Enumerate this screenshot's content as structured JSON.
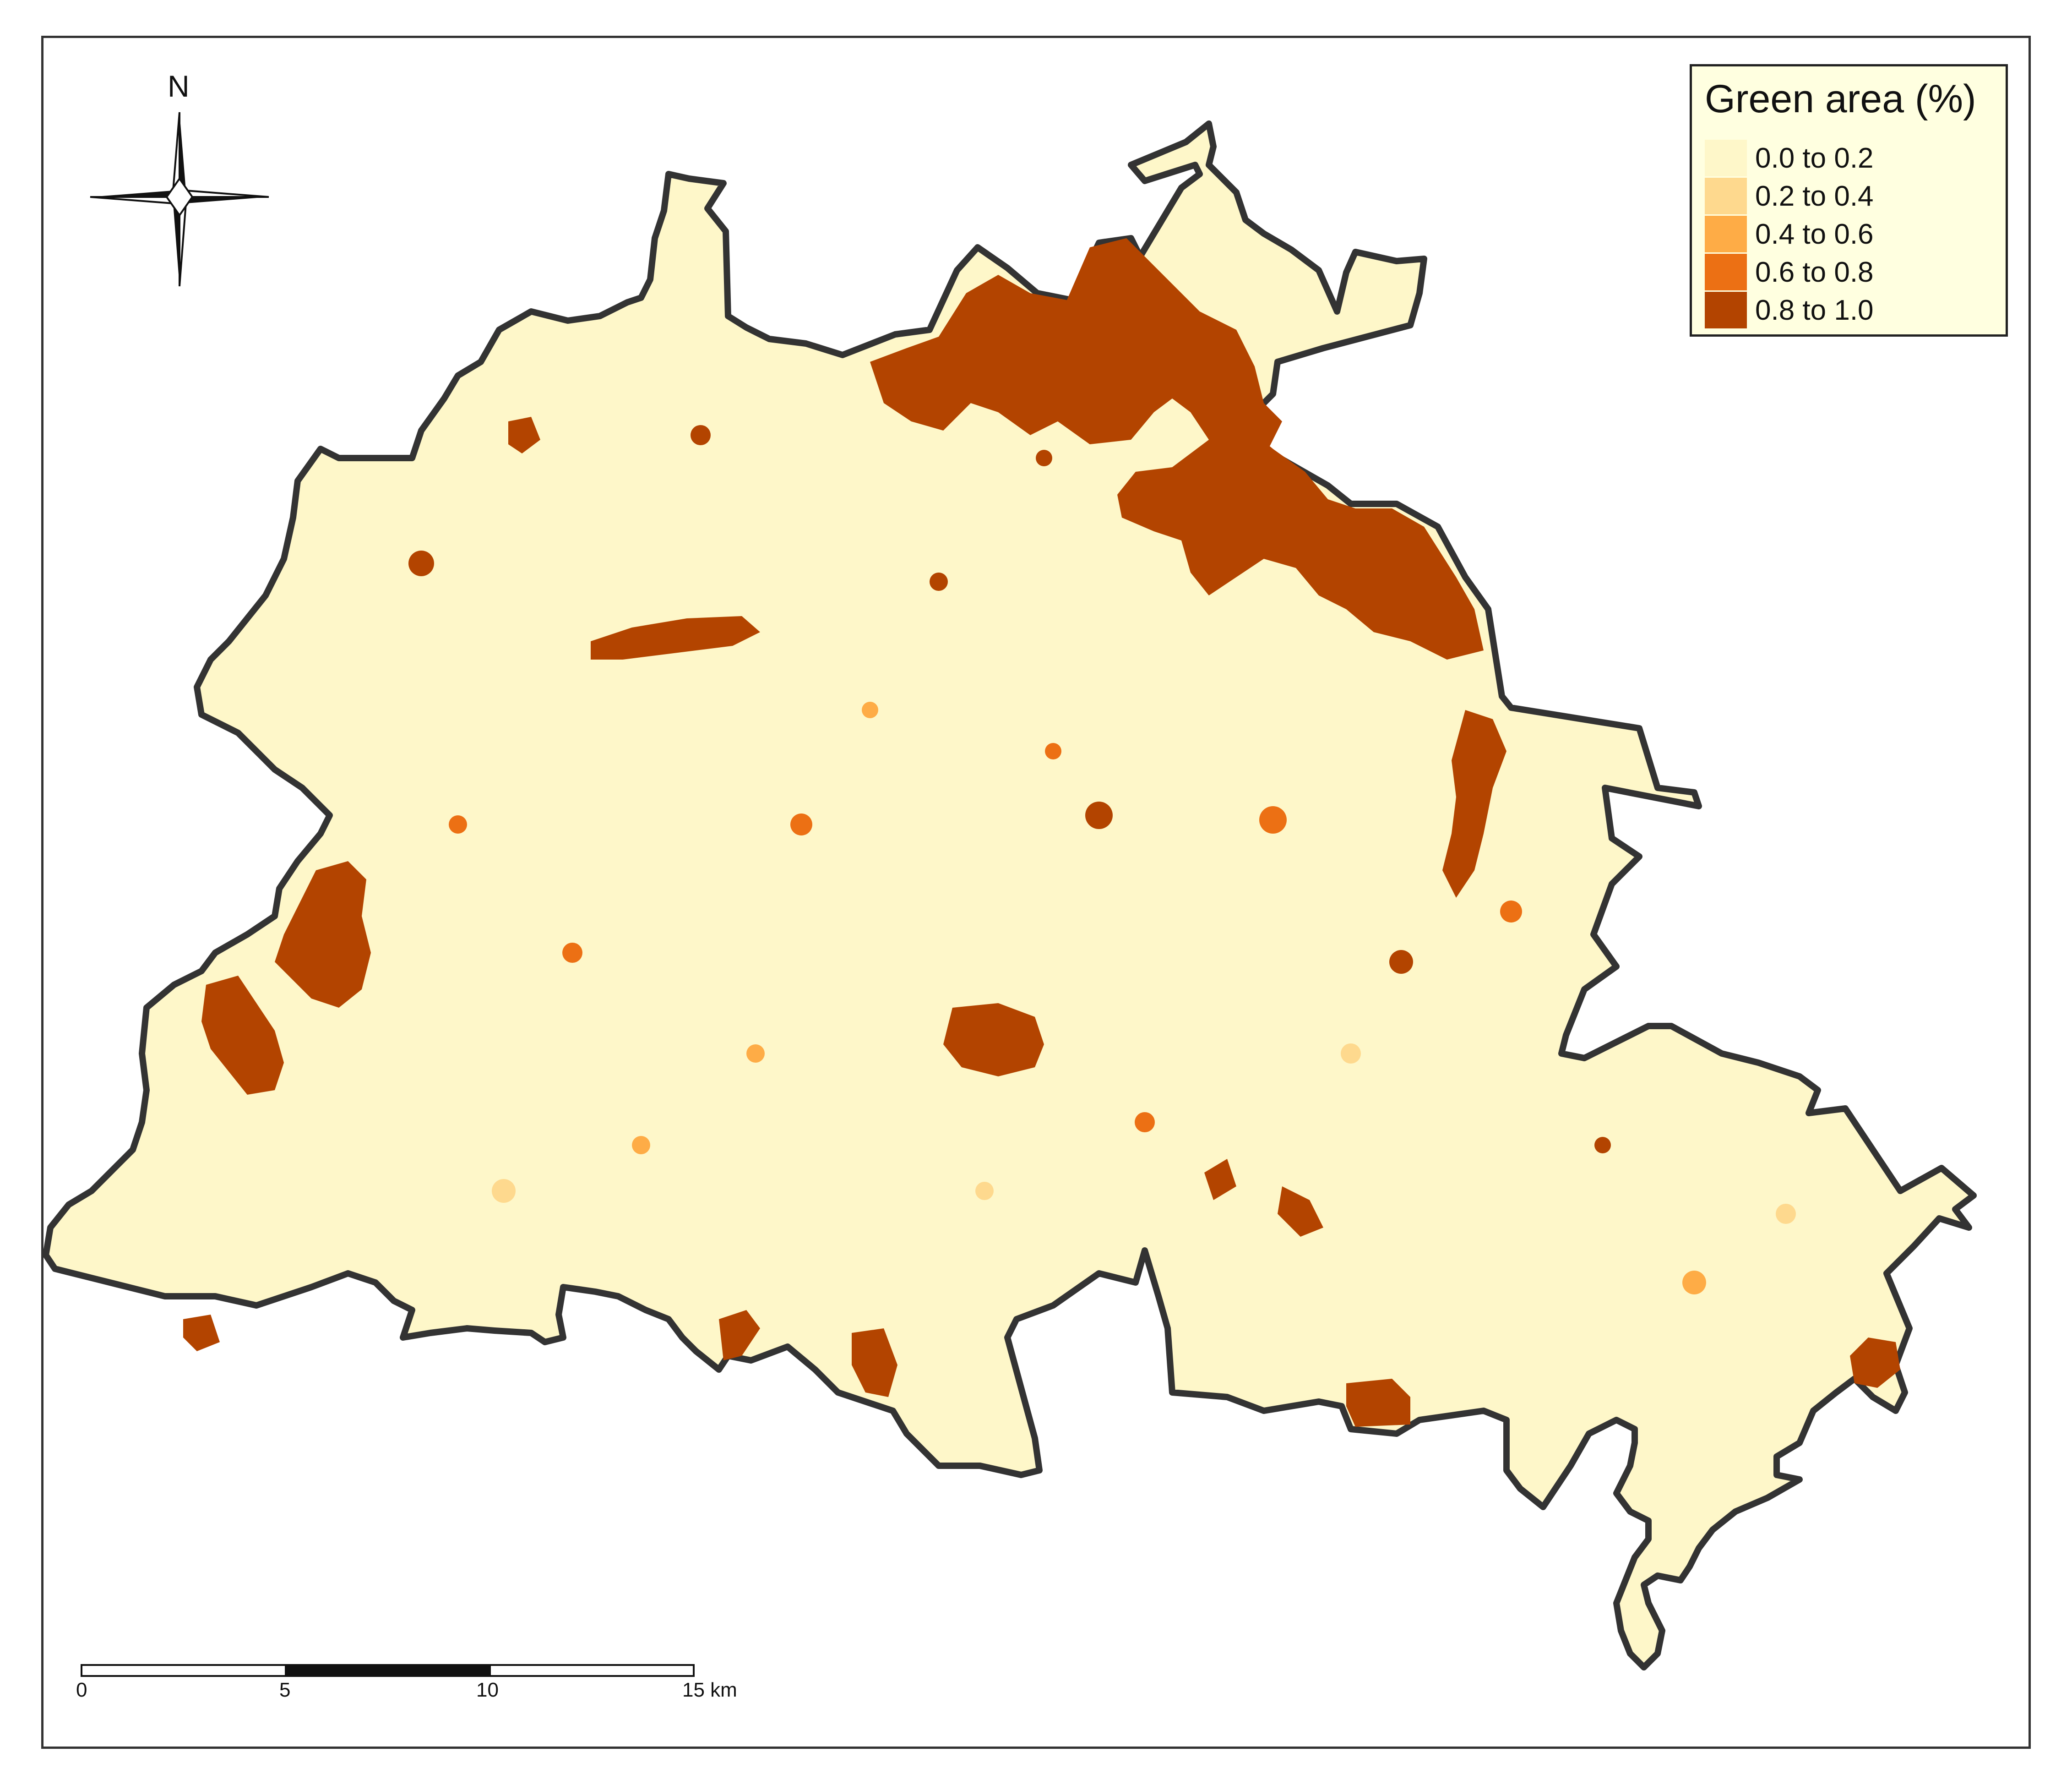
{
  "legend": {
    "title": "Green area (%)",
    "classes": [
      {
        "label": "0.0 to 0.2",
        "color": "#fef7c9"
      },
      {
        "label": "0.2 to 0.4",
        "color": "#fed98e"
      },
      {
        "label": "0.4 to 0.6",
        "color": "#feac46"
      },
      {
        "label": "0.6 to 0.8",
        "color": "#ec7014"
      },
      {
        "label": "0.8 to 1.0",
        "color": "#b34400"
      }
    ]
  },
  "north_arrow": {
    "label": "N",
    "icon": "compass-rose-icon"
  },
  "scale_bar": {
    "ticks": [
      "0",
      "5",
      "10",
      "15 km"
    ]
  },
  "colors": {
    "land": "#fef7c9",
    "high_green": "#b34400",
    "outline": "#333333"
  }
}
